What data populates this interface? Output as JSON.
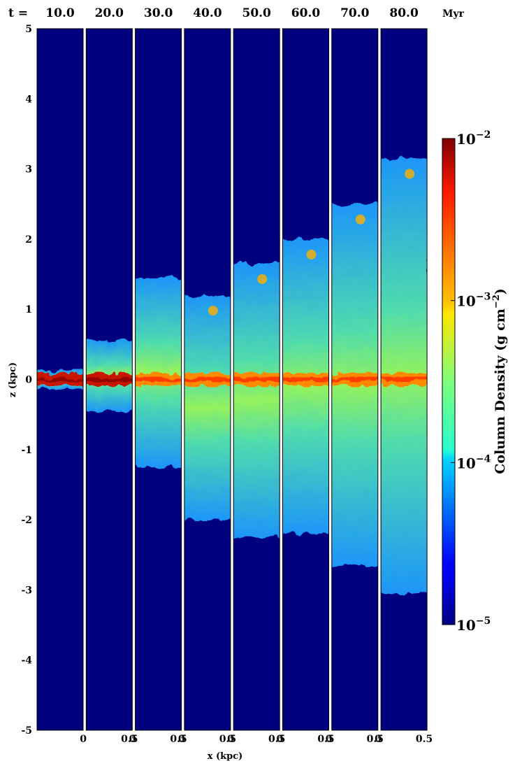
{
  "chart_data": {
    "type": "heatmap",
    "time_prefix": "t =",
    "time_unit": "Myr",
    "panels": [
      {
        "t": "10.0",
        "top": 0.12,
        "bottom": -0.14,
        "core": 0.1
      },
      {
        "t": "20.0",
        "top": 0.55,
        "bottom": -0.45,
        "core": 0.1
      },
      {
        "t": "30.0",
        "top": 1.45,
        "bottom": -1.25,
        "core": 0.1
      },
      {
        "t": "40.0",
        "top": 1.2,
        "bottom": -2.0,
        "core": 0.1
      },
      {
        "t": "50.0",
        "top": 1.65,
        "bottom": -2.25,
        "core": 0.1
      },
      {
        "t": "60.0",
        "top": 2.0,
        "bottom": -2.2,
        "core": 0.1
      },
      {
        "t": "70.0",
        "top": 2.5,
        "bottom": -2.65,
        "core": 0.1
      },
      {
        "t": "80.0",
        "top": 3.15,
        "bottom": -3.05,
        "core": 0.1
      }
    ],
    "xlabel": "x (kpc)",
    "ylabel": "z (kpc)",
    "x_ticks": [
      "0",
      "0.5"
    ],
    "y_ticks": [
      "5",
      "4",
      "3",
      "2",
      "1",
      "0",
      "-1",
      "-2",
      "-3",
      "-4",
      "-5"
    ],
    "ylim": [
      -5,
      5
    ],
    "colorbar": {
      "label": "Column Density (g cm",
      "label_exp": "−2",
      "label_close": ")",
      "scale": "log",
      "ticks": [
        {
          "base": "10",
          "exp": "−2",
          "value": 0.01
        },
        {
          "base": "10",
          "exp": "−3",
          "value": 0.001
        },
        {
          "base": "10",
          "exp": "−4",
          "value": 0.0001
        },
        {
          "base": "10",
          "exp": "−5",
          "value": 1e-05
        }
      ],
      "range": [
        1e-05,
        0.01
      ],
      "colormap": "jet"
    }
  }
}
